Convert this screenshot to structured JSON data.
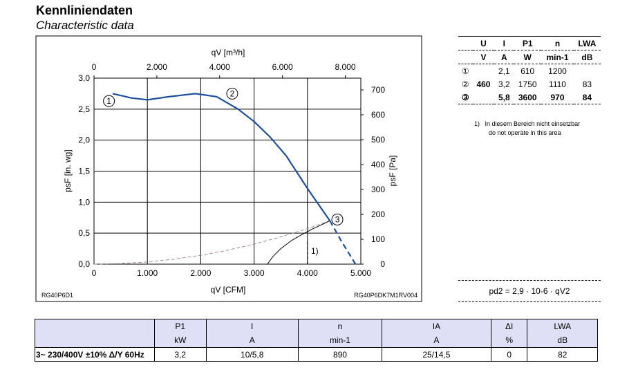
{
  "title_de": "Kennliniendaten",
  "title_en": "Characteristic data",
  "chart_data": {
    "type": "line",
    "x_top_label": "qV [m³/h]",
    "x_top_ticks": [
      "0",
      "2.000",
      "4.000",
      "6.000",
      "8.000"
    ],
    "x_bottom_label": "qV [CFM]",
    "x_bottom_ticks": [
      "0",
      "1.000",
      "2.000",
      "3.000",
      "4.000",
      "5.000"
    ],
    "xlim": [
      0,
      5000
    ],
    "y_left_label": "psF [in. wg]",
    "y_left_ticks": [
      "0,0",
      "0,5",
      "1,0",
      "1,5",
      "2,0",
      "2,5",
      "3,0"
    ],
    "ylim": [
      0,
      3
    ],
    "y_right_label": "psF [Pa]",
    "y_right_ticks": [
      "0",
      "100",
      "200",
      "300",
      "400",
      "500",
      "600",
      "700"
    ],
    "series": [
      {
        "name": "fan curve",
        "style": "solid",
        "x": [
          350,
          700,
          1000,
          1400,
          1900,
          2300,
          2700,
          3000,
          3300,
          3600,
          4000,
          4420
        ],
        "y": [
          2.75,
          2.68,
          2.65,
          2.7,
          2.75,
          2.7,
          2.5,
          2.3,
          2.05,
          1.75,
          1.22,
          0.7
        ]
      },
      {
        "name": "fan curve (extrapolated)",
        "style": "dashed",
        "x": [
          4420,
          4650,
          4900
        ],
        "y": [
          0.7,
          0.35,
          0.0
        ]
      },
      {
        "name": "system curve",
        "style": "dashed-gray",
        "x": [
          0,
          500,
          1000,
          1500,
          2000,
          2500,
          3000,
          3500,
          4000,
          4420
        ],
        "y": [
          0,
          0.009,
          0.036,
          0.081,
          0.143,
          0.224,
          0.322,
          0.439,
          0.573,
          0.7
        ]
      },
      {
        "name": "limit curve",
        "style": "solid-black",
        "x": [
          3250,
          3350,
          3500,
          3700,
          3900,
          4100,
          4300,
          4420
        ],
        "y": [
          0,
          0.12,
          0.25,
          0.38,
          0.48,
          0.57,
          0.65,
          0.7
        ]
      }
    ],
    "points": [
      {
        "label": "1",
        "x": 280,
        "y": 2.63
      },
      {
        "label": "2",
        "x": 2590,
        "y": 2.75
      },
      {
        "label": "3",
        "x": 4560,
        "y": 0.72
      }
    ],
    "annotation": "1)",
    "code_left": "RG40P6D1",
    "code_right": "RG40P6DK7M1RV004"
  },
  "spec_table": {
    "headers": [
      "U",
      "I",
      "P1",
      "n",
      "LWA"
    ],
    "units": [
      "V",
      "A",
      "W",
      "min-1",
      "dB"
    ],
    "rows": [
      [
        "①",
        "",
        "2,1",
        "610",
        "1200",
        ""
      ],
      [
        "②",
        "460",
        "3,2",
        "1750",
        "1110",
        "83"
      ],
      [
        "③",
        "",
        "5,8",
        "3600",
        "970",
        "84"
      ]
    ]
  },
  "note": {
    "num": "1)",
    "de": "In diesem Bereich nicht einsetzbar",
    "en": "do not operate in this area"
  },
  "formula": "pd2 = 2,9 · 10-6 · qV2",
  "bottom_table": {
    "headers": [
      "P1",
      "I",
      "n",
      "IA",
      "ΔI",
      "LWA"
    ],
    "units": [
      "kW",
      "A",
      "min-1",
      "A",
      "%",
      "dB"
    ],
    "row": [
      "3~ 230/400V ±10% Δ/Y 60Hz",
      "3,2",
      "10/5,8",
      "890",
      "25/14,5",
      "0",
      "82"
    ]
  }
}
